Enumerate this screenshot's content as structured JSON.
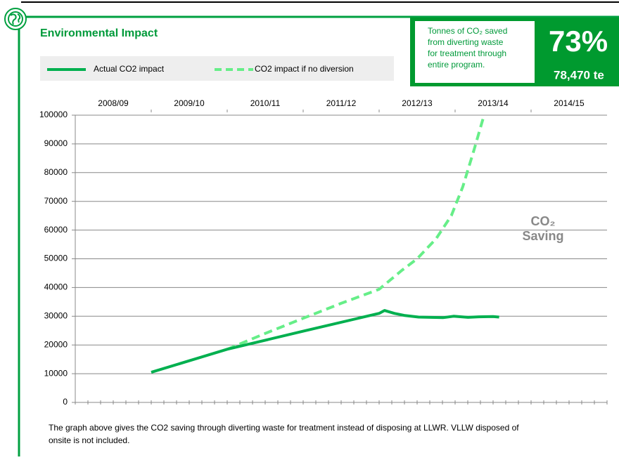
{
  "header": {
    "title": "Environmental Impact"
  },
  "info_box": {
    "lines": [
      "Tonnes of CO₂ saved",
      "from diverting waste",
      "for treatment through",
      "entire program."
    ],
    "percent": "73%",
    "amount": "78,470 te"
  },
  "footnote": [
    "The graph above gives the CO2 saving through diverting waste for treatment instead of disposing at LLWR. VLLW disposed of",
    "onsite is not included."
  ],
  "chart_data": {
    "type": "line",
    "categories": [
      "2008/09",
      "2009/10",
      "2010/11",
      "2011/12",
      "2012/13",
      "2013/14",
      "2014/15"
    ],
    "xlim": [
      2008,
      2015
    ],
    "xticks": [
      2009,
      2010,
      2011,
      2012,
      2013,
      2014
    ],
    "ylim": [
      0,
      100000
    ],
    "yticks": [
      0,
      10000,
      20000,
      30000,
      40000,
      50000,
      60000,
      70000,
      80000,
      90000,
      100000
    ],
    "grid": true,
    "annotation": [
      "CO₂",
      "Saving"
    ],
    "series": [
      {
        "name": "Actual CO2 impact",
        "color": "#00b04f",
        "dashed": false,
        "x": [
          2009,
          2009.5,
          2010,
          2011,
          2012,
          2012.07,
          2012.2,
          2012.33,
          2012.52,
          2012.84,
          2012.98,
          2013.17,
          2013.31,
          2013.5,
          2013.58
        ],
        "values": [
          10500,
          14500,
          18500,
          24800,
          31000,
          32000,
          31000,
          30300,
          29700,
          29500,
          30000,
          29600,
          29800,
          29900,
          29700
        ]
      },
      {
        "name": "CO2 impact if no diversion",
        "color": "#66ee88",
        "dashed": true,
        "x": [
          2010,
          2010.5,
          2011,
          2011.5,
          2012,
          2012.3,
          2012.5,
          2012.75,
          2012.95,
          2013.1,
          2013.25,
          2013.37
        ],
        "values": [
          18500,
          24000,
          29300,
          34500,
          39400,
          46000,
          50000,
          57000,
          65000,
          75000,
          88000,
          99000
        ]
      }
    ]
  }
}
